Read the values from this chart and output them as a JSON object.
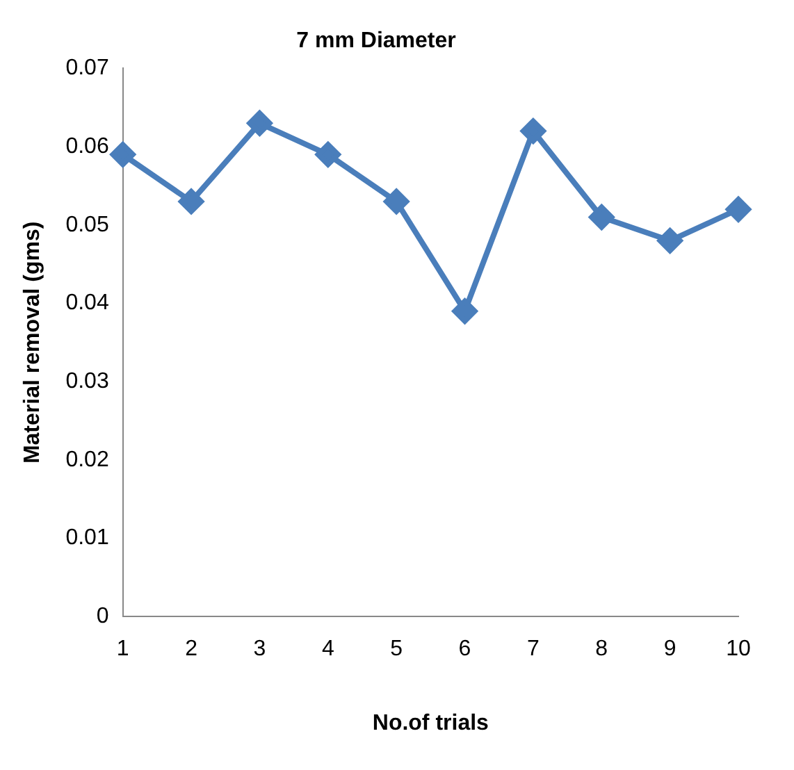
{
  "chart_data": {
    "type": "line",
    "title": "7 mm Diameter",
    "xlabel": "No.of trials",
    "ylabel": "Material removal (gms)",
    "categories": [
      "1",
      "2",
      "3",
      "4",
      "5",
      "6",
      "7",
      "8",
      "9",
      "10"
    ],
    "series": [
      {
        "color": "#4a7ebb",
        "values": [
          0.059,
          0.053,
          0.063,
          0.059,
          0.053,
          0.039,
          0.062,
          0.051,
          0.048,
          0.052
        ]
      }
    ],
    "ylim": [
      0,
      0.07
    ],
    "yticks": [
      0,
      0.01,
      0.02,
      0.03,
      0.04,
      0.05,
      0.06,
      0.07
    ],
    "grid": false,
    "legend": false,
    "marker": "diamond",
    "line_style": "solid"
  }
}
